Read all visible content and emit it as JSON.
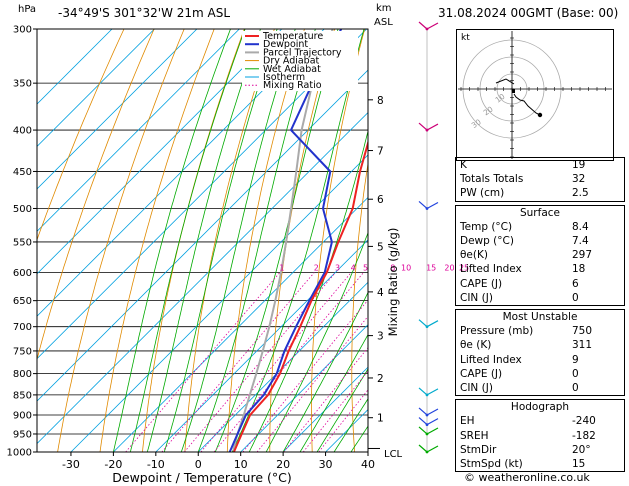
{
  "header": {
    "hpa_label": "hPa",
    "location": "-34°49'S 301°32'W 21m ASL",
    "km_label": "km",
    "asl_label": "ASL",
    "valid_time": "31.08.2024 00GMT (Base: 00)"
  },
  "chart_data": {
    "type": "skew-t log-p sounding",
    "xlabel": "Dewpoint / Temperature (°C)",
    "right_axis_label": "Mixing Ratio (g/kg)",
    "pressure_ticks": [
      1000,
      950,
      900,
      850,
      800,
      750,
      700,
      650,
      600,
      550,
      500,
      450,
      400,
      350,
      300
    ],
    "temperature_ticks": [
      -30,
      -20,
      -10,
      0,
      10,
      20,
      30,
      40
    ],
    "plim_hpa": [
      1000,
      300
    ],
    "xlim_degC_at_1000hPa": [
      -38,
      40
    ],
    "height_ticks_km": [
      "1",
      "2",
      "3",
      "4",
      "5",
      "6",
      "7",
      "8"
    ],
    "lcl_label": "LCL",
    "mixing_ratio_labels": [
      "1",
      "2",
      "3",
      "4",
      "5",
      "8",
      "10",
      "15",
      "20",
      "25"
    ],
    "legend": [
      "Temperature",
      "Dewpoint",
      "Parcel Trajectory",
      "Dry Adiabat",
      "Wet Adiabat",
      "Isotherm",
      "Mixing Ratio"
    ],
    "colors": {
      "temperature": "#ee2222",
      "dewpoint": "#2233cc",
      "parcel": "#aaaaaa",
      "dry_adiabat": "#e08a00",
      "wet_adiabat": "#00aa00",
      "isotherm": "#00a0e0",
      "mixing_ratio": "#dd0099"
    },
    "temperature_profile": [
      {
        "p": 1000,
        "t": 8.4
      },
      {
        "p": 950,
        "t": 6.0
      },
      {
        "p": 900,
        "t": 3.5
      },
      {
        "p": 850,
        "t": 3.0
      },
      {
        "p": 800,
        "t": 0.8
      },
      {
        "p": 750,
        "t": -2.5
      },
      {
        "p": 700,
        "t": -5.5
      },
      {
        "p": 650,
        "t": -9.0
      },
      {
        "p": 600,
        "t": -12.0
      },
      {
        "p": 550,
        "t": -16.5
      },
      {
        "p": 500,
        "t": -21.0
      },
      {
        "p": 450,
        "t": -28.0
      },
      {
        "p": 400,
        "t": -35.0
      },
      {
        "p": 350,
        "t": -43.0
      },
      {
        "p": 300,
        "t": -52.0
      }
    ],
    "dewpoint_profile": [
      {
        "p": 1000,
        "t": 7.4
      },
      {
        "p": 950,
        "t": 5.0
      },
      {
        "p": 900,
        "t": 2.5
      },
      {
        "p": 850,
        "t": 2.0
      },
      {
        "p": 800,
        "t": 0.0
      },
      {
        "p": 750,
        "t": -3.5
      },
      {
        "p": 700,
        "t": -6.5
      },
      {
        "p": 650,
        "t": -9.5
      },
      {
        "p": 600,
        "t": -12.5
      },
      {
        "p": 550,
        "t": -18.0
      },
      {
        "p": 500,
        "t": -28.0
      },
      {
        "p": 450,
        "t": -35.0
      },
      {
        "p": 400,
        "t": -54.0
      },
      {
        "p": 350,
        "t": -60.0
      },
      {
        "p": 300,
        "t": -66.0
      }
    ],
    "parcel_profile": [
      {
        "p": 1000,
        "t": 8.4
      },
      {
        "p": 990,
        "t": 7.5
      },
      {
        "p": 950,
        "t": 5.0
      },
      {
        "p": 900,
        "t": 2.0
      },
      {
        "p": 850,
        "t": -1.3
      },
      {
        "p": 800,
        "t": -4.8
      },
      {
        "p": 750,
        "t": -8.6
      },
      {
        "p": 700,
        "t": -12.8
      },
      {
        "p": 650,
        "t": -17.5
      },
      {
        "p": 600,
        "t": -22.8
      },
      {
        "p": 550,
        "t": -28.8
      },
      {
        "p": 500,
        "t": -35.5
      },
      {
        "p": 450,
        "t": -43.0
      },
      {
        "p": 400,
        "t": -51.5
      },
      {
        "p": 350,
        "t": -60.0
      },
      {
        "p": 300,
        "t": -68.0
      }
    ]
  },
  "hodograph": {
    "label": "kt",
    "ring_labels": [
      "10",
      "20",
      "30"
    ]
  },
  "indices": {
    "top": [
      {
        "label": "K",
        "value": "19"
      },
      {
        "label": "Totals Totals",
        "value": "32"
      },
      {
        "label": "PW (cm)",
        "value": "2.5"
      }
    ],
    "surface": {
      "title": "Surface",
      "rows": [
        {
          "label": "Temp (°C)",
          "value": "8.4"
        },
        {
          "label": "Dewp (°C)",
          "value": "7.4"
        },
        {
          "label": "θe(K)",
          "value": "297"
        },
        {
          "label": "Lifted Index",
          "value": "18"
        },
        {
          "label": "CAPE (J)",
          "value": "6"
        },
        {
          "label": "CIN (J)",
          "value": "0"
        }
      ]
    },
    "most_unstable": {
      "title": "Most Unstable",
      "rows": [
        {
          "label": "Pressure (mb)",
          "value": "750"
        },
        {
          "label": "θe (K)",
          "value": "311"
        },
        {
          "label": "Lifted Index",
          "value": "9"
        },
        {
          "label": "CAPE (J)",
          "value": "0"
        },
        {
          "label": "CIN (J)",
          "value": "0"
        }
      ]
    },
    "hodograph": {
      "title": "Hodograph",
      "rows": [
        {
          "label": "EH",
          "value": "-240"
        },
        {
          "label": "SREH",
          "value": "-182"
        },
        {
          "label": "StmDir",
          "value": "20°"
        },
        {
          "label": "StmSpd (kt)",
          "value": "15"
        }
      ]
    }
  },
  "footer": {
    "credit": "© weatheronline.co.uk"
  }
}
